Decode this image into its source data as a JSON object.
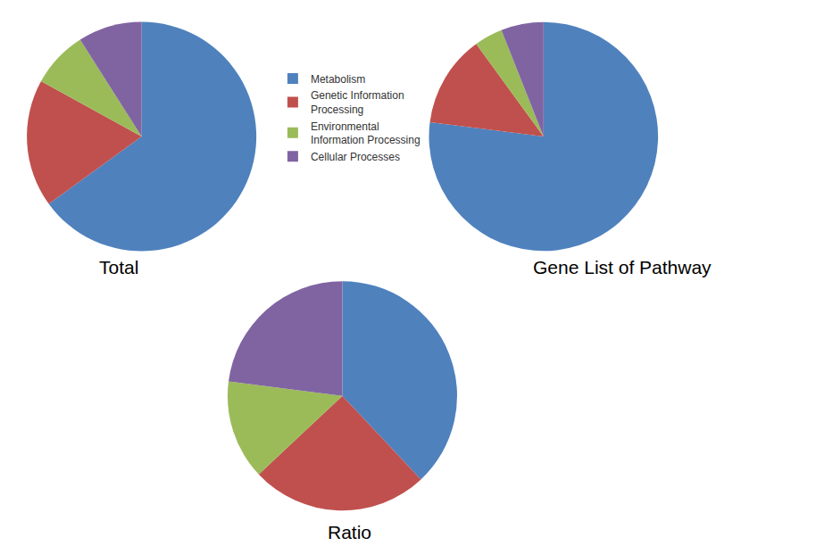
{
  "chart_data": [
    {
      "type": "pie",
      "title": "Total",
      "categories": [
        "Metabolism",
        "Genetic Information Processing",
        "Environmental Information Processing",
        "Cellular Processes"
      ],
      "values": [
        65,
        18,
        8,
        9
      ],
      "colors": [
        "#4f81bd",
        "#c0504d",
        "#9bbb59",
        "#8064a2"
      ],
      "legend": "right"
    },
    {
      "type": "pie",
      "title": "Gene List of Pathway",
      "categories": [
        "Metabolism",
        "Genetic Information Processing",
        "Environmental Information Processing",
        "Cellular Processes"
      ],
      "values": [
        77,
        13,
        4,
        6
      ],
      "colors": [
        "#4f81bd",
        "#c0504d",
        "#9bbb59",
        "#8064a2"
      ],
      "legend": "right"
    },
    {
      "type": "pie",
      "title": "Ratio",
      "categories": [
        "Metabolism",
        "Genetic Information Processing",
        "Environmental Information Processing",
        "Cellular Processes"
      ],
      "values": [
        38,
        25,
        14,
        23
      ],
      "colors": [
        "#4f81bd",
        "#c0504d",
        "#9bbb59",
        "#8064a2"
      ],
      "legend": "right"
    }
  ]
}
